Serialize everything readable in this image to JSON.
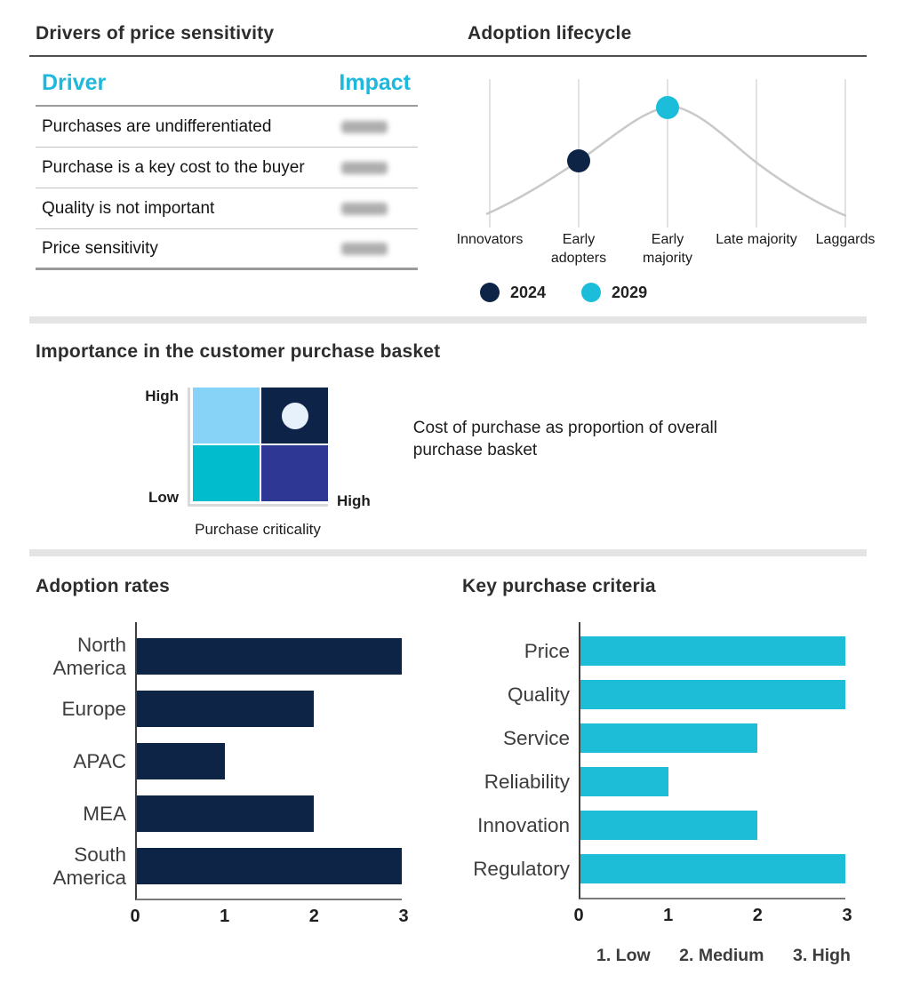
{
  "palette": {
    "navy": "#0e2446",
    "cyan_text": "#1cb9dc",
    "bar_cyan": "#1dbdd8",
    "sky_blue": "#87d3f7",
    "teal": "#00bccd",
    "indigo": "#2e3793",
    "light_marker": "#e7f1fb",
    "curve_gray": "#c9c9c9"
  },
  "chart_data": [
    {
      "type": "table",
      "title": "Drivers of price sensitivity",
      "columns": [
        "Driver",
        "Impact"
      ],
      "rows": [
        {
          "driver": "Purchases are undifferentiated",
          "impact": "(blurred)"
        },
        {
          "driver": "Purchase is a key cost to the buyer",
          "impact": "(blurred)"
        },
        {
          "driver": "Quality is not important",
          "impact": "(blurred)"
        },
        {
          "driver": "Price sensitivity",
          "impact": "(blurred)"
        }
      ]
    },
    {
      "type": "line",
      "title": "Adoption lifecycle",
      "x_categories": [
        "Innovators",
        "Early adopters",
        "Early majority",
        "Late majority",
        "Laggards"
      ],
      "curve": "bell",
      "grid": "vertical",
      "legend_position": "bottom",
      "series": [
        {
          "name": "2024",
          "x": "Early adopters",
          "color": "#0e2446"
        },
        {
          "name": "2029",
          "x": "Early majority",
          "color": "#1cbddb"
        }
      ]
    },
    {
      "type": "heatmap",
      "title": "Importance in the customer purchase basket",
      "y_top": "High",
      "y_bottom": "Low",
      "x_right": "High",
      "xlabel": "Purchase criticality",
      "annotation": "Cost of purchase as proportion of overall purchase basket",
      "cells": [
        {
          "pos": "top-left",
          "color": "#87d3f7"
        },
        {
          "pos": "top-right",
          "color": "#0d2347"
        },
        {
          "pos": "bottom-left",
          "color": "#00bccd"
        },
        {
          "pos": "bottom-right",
          "color": "#2e3793"
        }
      ],
      "marker": {
        "cell": "top-right",
        "color": "#e7f1fb"
      }
    },
    {
      "type": "bar",
      "orientation": "horizontal",
      "title": "Adoption rates",
      "categories": [
        "North America",
        "Europe",
        "APAC",
        "MEA",
        "South America"
      ],
      "values": [
        3,
        2,
        1,
        2,
        3
      ],
      "xlim": [
        0,
        3
      ],
      "xticks": [
        0,
        1,
        2,
        3
      ],
      "color": "#0e2446"
    },
    {
      "type": "bar",
      "orientation": "horizontal",
      "title": "Key purchase criteria",
      "categories": [
        "Price",
        "Quality",
        "Service",
        "Reliability",
        "Innovation",
        "Regulatory"
      ],
      "values": [
        3,
        3,
        2,
        1,
        2,
        3
      ],
      "xlim": [
        0,
        3
      ],
      "xticks": [
        0,
        1,
        2,
        3
      ],
      "color": "#1dbdd8",
      "scale_notes": [
        "1. Low",
        "2. Medium",
        "3. High"
      ]
    }
  ]
}
